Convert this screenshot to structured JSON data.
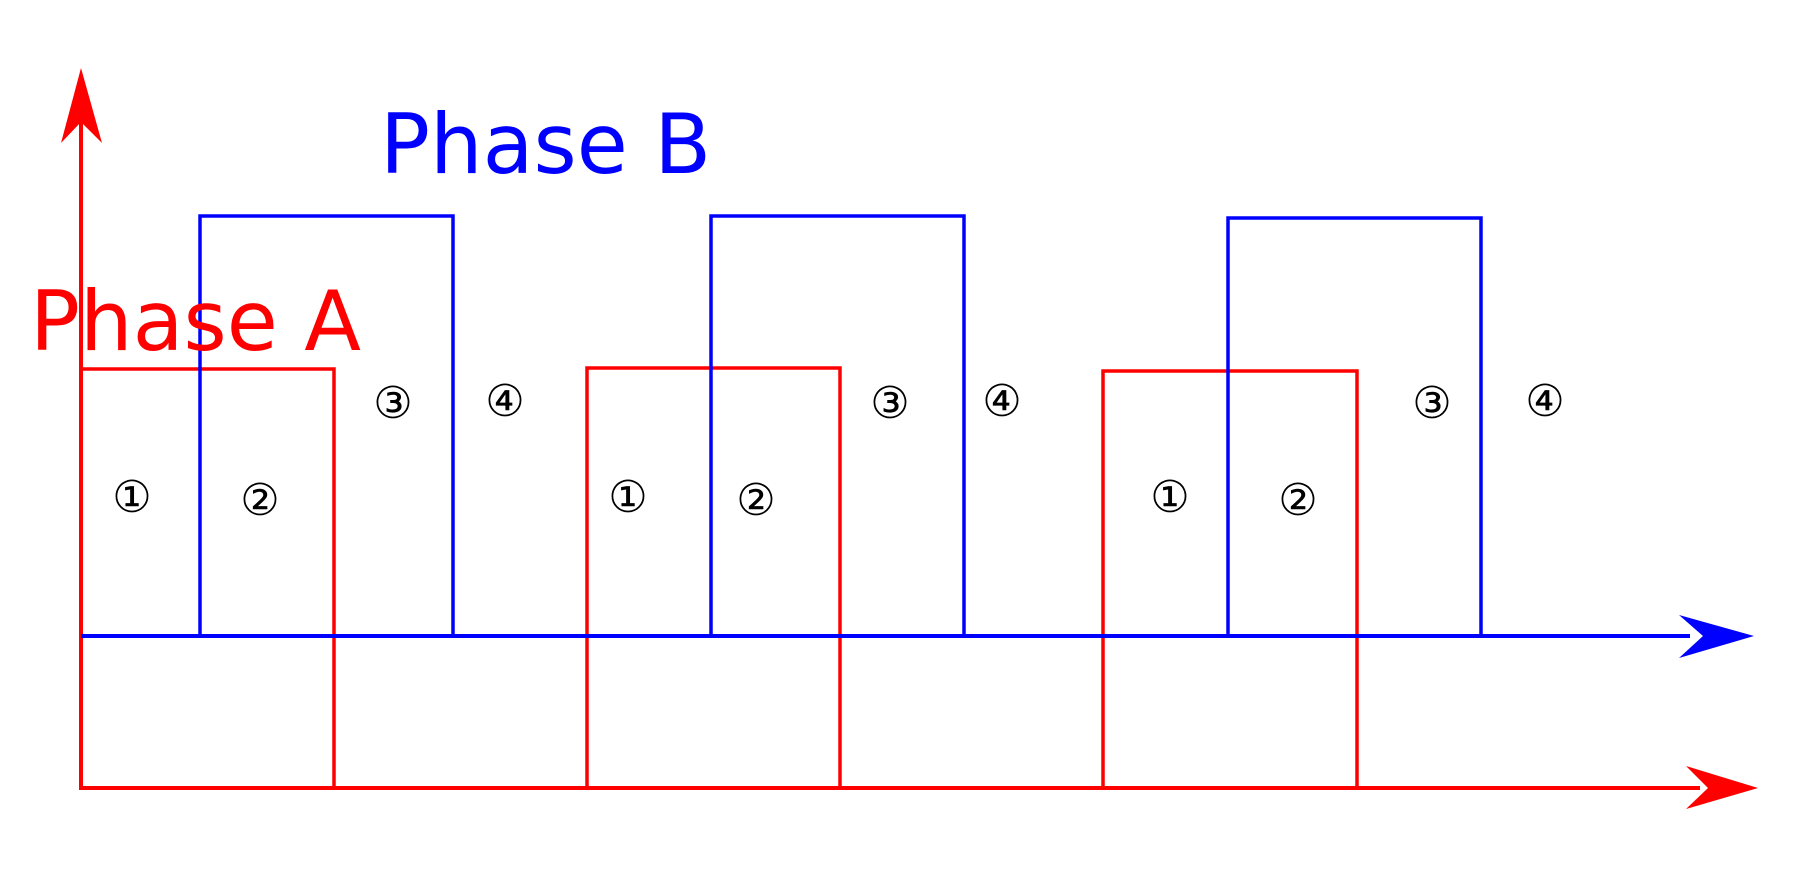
{
  "colors": {
    "phase_a": "#ff0000",
    "phase_b": "#0000ff",
    "state_labels": "#000000"
  },
  "labels": {
    "phase_a": "Phase A",
    "phase_b": "Phase B"
  },
  "state_markers": [
    "①",
    "②",
    "③",
    "④",
    "①",
    "②",
    "③",
    "④",
    "①",
    "②",
    "③",
    "④"
  ],
  "waveforms": {
    "phase_a": {
      "levels": [
        1,
        0,
        1,
        0,
        1,
        0
      ]
    },
    "phase_b": {
      "levels": [
        0,
        1,
        0,
        1,
        0,
        1,
        0
      ]
    }
  }
}
